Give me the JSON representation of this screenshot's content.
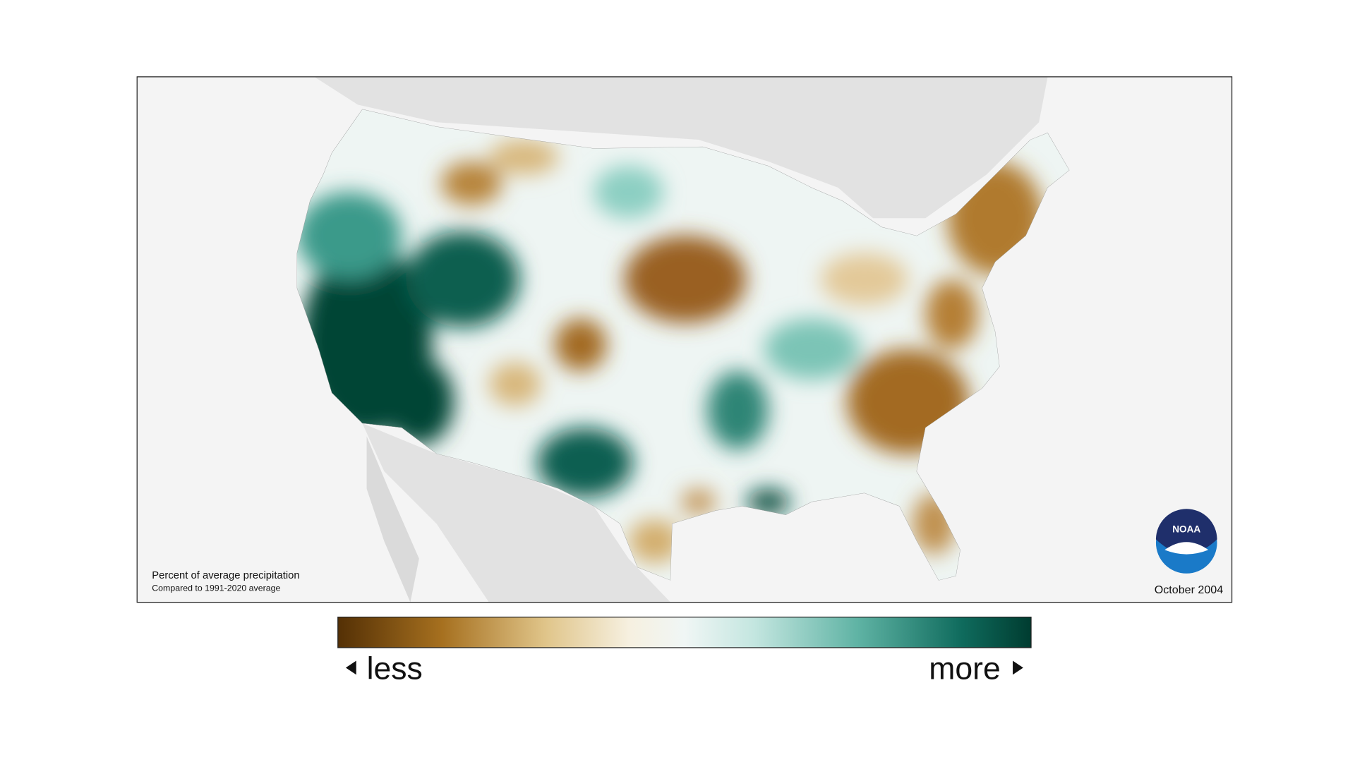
{
  "map": {
    "caption": {
      "title": "Percent of average precipitation",
      "subtitle": "Compared to 1991-2020 average"
    },
    "date": "October 2004",
    "logo": "NOAA"
  },
  "legend": {
    "low_label": "less",
    "high_label": "more"
  }
}
